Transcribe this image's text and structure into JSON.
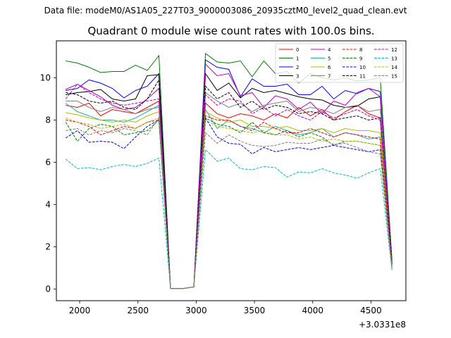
{
  "header": {
    "data_file": "Data file: modeM0/AS1A05_227T03_9000003086_20935cztM0_level2_quad_clean.evt"
  },
  "chart_data": {
    "type": "line",
    "title": "Quadrant 0 module wise count rates with 100.0s bins.",
    "xlabel": "",
    "ylabel": "",
    "x_offset_label": "+3.0331e8",
    "xlim": [
      1800,
      4800
    ],
    "ylim": [
      -0.55,
      11.75
    ],
    "xticks": [
      2000,
      2500,
      3000,
      3500,
      4000,
      4500
    ],
    "yticks": [
      0,
      2,
      4,
      6,
      8,
      10
    ],
    "grid": false,
    "legend_position": "top-right",
    "x": [
      1880,
      1980,
      2080,
      2180,
      2280,
      2380,
      2480,
      2580,
      2680,
      2780,
      2880,
      2980,
      3080,
      3180,
      3280,
      3380,
      3480,
      3580,
      3680,
      3780,
      3880,
      3980,
      4080,
      4180,
      4280,
      4380,
      4480,
      4580,
      4680
    ],
    "series": [
      {
        "name": "0",
        "color": "#ff0000",
        "dash": "solid",
        "values": [
          8.7,
          8.6,
          8.8,
          8.2,
          8.5,
          8.4,
          8.3,
          8.6,
          8.9,
          0.02,
          0.02,
          0.1,
          8.8,
          8.3,
          8.1,
          8.3,
          8.2,
          8.0,
          8.3,
          8.1,
          8.6,
          8.2,
          8.5,
          8.0,
          8.4,
          8.7,
          8.3,
          8.1,
          1.2
        ]
      },
      {
        "name": "1",
        "color": "#008000",
        "dash": "solid",
        "values": [
          10.8,
          10.7,
          10.5,
          10.25,
          10.3,
          10.3,
          10.6,
          10.35,
          11.05,
          0.02,
          0.02,
          0.1,
          11.15,
          10.75,
          10.7,
          10.8,
          10.05,
          10.8,
          10.2,
          10.3,
          9.75,
          10.2,
          10.0,
          9.9,
          10.0,
          9.85,
          9.9,
          10.0,
          1.4
        ]
      },
      {
        "name": "2",
        "color": "#0000ff",
        "dash": "solid",
        "values": [
          9.4,
          9.5,
          9.9,
          9.75,
          9.5,
          9.05,
          9.4,
          9.6,
          10.2,
          0.02,
          0.02,
          0.1,
          10.85,
          10.5,
          10.4,
          9.1,
          9.95,
          9.6,
          9.6,
          9.7,
          9.2,
          9.2,
          9.6,
          9.0,
          9.4,
          9.25,
          9.5,
          9.35,
          1.2
        ]
      },
      {
        "name": "3",
        "color": "#000000",
        "dash": "solid",
        "values": [
          9.2,
          9.3,
          9.35,
          9.45,
          9.0,
          8.9,
          9.0,
          10.1,
          10.15,
          0.02,
          0.02,
          0.1,
          10.2,
          9.4,
          9.75,
          9.05,
          9.5,
          9.3,
          9.4,
          9.25,
          9.1,
          9.0,
          8.95,
          8.7,
          8.6,
          8.65,
          9.0,
          9.1,
          1.3
        ]
      },
      {
        "name": "4",
        "color": "#c000c0",
        "dash": "solid",
        "values": [
          9.45,
          9.7,
          9.4,
          9.1,
          8.7,
          8.5,
          8.6,
          9.0,
          9.5,
          0.02,
          0.02,
          0.1,
          10.65,
          10.1,
          10.2,
          9.15,
          9.3,
          8.6,
          9.15,
          9.0,
          8.5,
          8.85,
          8.3,
          8.9,
          8.7,
          9.3,
          9.5,
          9.1,
          1.2
        ]
      },
      {
        "name": "5",
        "color": "#20b2aa",
        "dash": "solid",
        "values": [
          8.8,
          8.4,
          8.2,
          8.0,
          8.0,
          7.9,
          8.1,
          8.4,
          8.7,
          0.02,
          0.02,
          0.1,
          8.5,
          7.6,
          8.0,
          7.7,
          7.6,
          7.4,
          7.7,
          7.5,
          7.3,
          7.4,
          7.6,
          7.2,
          7.4,
          7.3,
          7.1,
          7.2,
          0.9
        ]
      },
      {
        "name": "6",
        "color": "#b8b800",
        "dash": "solid",
        "values": [
          8.35,
          8.25,
          8.1,
          8.0,
          7.9,
          8.0,
          7.9,
          8.2,
          8.4,
          0.02,
          0.02,
          0.1,
          8.4,
          8.1,
          7.9,
          8.0,
          7.7,
          7.7,
          7.6,
          7.7,
          7.5,
          7.5,
          7.6,
          7.4,
          7.6,
          7.5,
          7.5,
          7.4,
          1.0
        ]
      },
      {
        "name": "7",
        "color": "#808080",
        "dash": "solid",
        "values": [
          8.9,
          8.9,
          8.6,
          8.4,
          8.6,
          8.5,
          8.3,
          8.5,
          8.6,
          0.02,
          0.02,
          0.1,
          9.3,
          8.9,
          8.6,
          8.8,
          8.4,
          8.7,
          8.8,
          8.9,
          8.4,
          8.6,
          8.5,
          8.3,
          8.6,
          8.7,
          8.4,
          8.5,
          1.1
        ]
      },
      {
        "name": "8",
        "color": "#ff0000",
        "dash": "dashed",
        "values": [
          8.0,
          7.9,
          7.7,
          7.3,
          7.5,
          7.7,
          7.6,
          7.9,
          8.0,
          0.02,
          0.02,
          0.1,
          8.2,
          8.0,
          8.0,
          7.7,
          7.5,
          7.9,
          7.6,
          7.4,
          7.4,
          7.6,
          7.4,
          7.2,
          7.4,
          7.3,
          7.2,
          7.1,
          1.1
        ]
      },
      {
        "name": "9",
        "color": "#008000",
        "dash": "dashed",
        "values": [
          7.9,
          7.0,
          7.6,
          7.8,
          7.7,
          7.3,
          7.4,
          7.5,
          8.0,
          0.02,
          0.02,
          0.1,
          8.1,
          7.8,
          7.7,
          7.4,
          7.9,
          7.4,
          7.3,
          7.5,
          7.2,
          7.4,
          7.2,
          6.8,
          7.0,
          7.0,
          6.9,
          6.8,
          1.0
        ]
      },
      {
        "name": "10",
        "color": "#0000ff",
        "dash": "dashed",
        "values": [
          7.15,
          7.5,
          6.95,
          7.0,
          6.95,
          6.65,
          7.2,
          7.7,
          8.0,
          0.02,
          0.02,
          0.1,
          8.1,
          7.2,
          6.9,
          6.85,
          6.4,
          6.7,
          6.5,
          6.6,
          6.7,
          6.6,
          6.7,
          6.8,
          6.7,
          6.6,
          6.5,
          6.6,
          1.0
        ]
      },
      {
        "name": "11",
        "color": "#000000",
        "dash": "dashed",
        "values": [
          9.3,
          9.2,
          8.9,
          8.8,
          8.9,
          8.6,
          8.5,
          9.0,
          9.9,
          0.02,
          0.02,
          0.1,
          9.6,
          9.0,
          9.3,
          8.6,
          8.9,
          8.5,
          8.7,
          8.6,
          8.3,
          8.4,
          8.3,
          8.0,
          8.1,
          8.2,
          8.0,
          8.1,
          1.2
        ]
      },
      {
        "name": "12",
        "color": "#c000c0",
        "dash": "dashed",
        "values": [
          9.0,
          9.7,
          9.3,
          9.0,
          8.8,
          8.7,
          8.8,
          8.9,
          9.0,
          0.02,
          0.02,
          0.1,
          9.2,
          8.7,
          9.0,
          8.9,
          8.3,
          8.6,
          8.2,
          8.5,
          8.2,
          8.0,
          8.4,
          8.1,
          8.3,
          8.5,
          8.2,
          8.0,
          1.2
        ]
      },
      {
        "name": "13",
        "color": "#00c0c0",
        "dash": "dashed",
        "values": [
          6.15,
          5.7,
          5.75,
          5.65,
          5.8,
          5.9,
          5.8,
          5.95,
          6.2,
          0.02,
          0.02,
          0.1,
          6.6,
          6.05,
          6.2,
          5.7,
          5.65,
          5.8,
          5.75,
          5.3,
          5.55,
          5.5,
          5.7,
          5.5,
          5.4,
          5.25,
          5.5,
          5.7,
          0.9
        ]
      },
      {
        "name": "14",
        "color": "#b8b800",
        "dash": "dashed",
        "values": [
          8.1,
          7.9,
          7.8,
          7.6,
          7.7,
          7.8,
          7.6,
          7.9,
          8.1,
          0.02,
          0.02,
          0.1,
          8.0,
          7.7,
          7.6,
          7.5,
          7.4,
          7.5,
          7.3,
          7.3,
          7.1,
          7.2,
          7.0,
          7.1,
          7.0,
          7.0,
          6.9,
          6.8,
          1.0
        ]
      },
      {
        "name": "15",
        "color": "#808080",
        "dash": "dashed",
        "values": [
          7.5,
          7.6,
          7.3,
          7.5,
          7.4,
          7.6,
          7.5,
          7.3,
          8.1,
          0.02,
          0.02,
          0.1,
          7.4,
          6.9,
          7.3,
          7.0,
          6.8,
          6.75,
          6.8,
          6.95,
          6.9,
          6.9,
          7.1,
          6.85,
          6.9,
          6.7,
          6.5,
          6.4,
          1.0
        ]
      }
    ]
  }
}
